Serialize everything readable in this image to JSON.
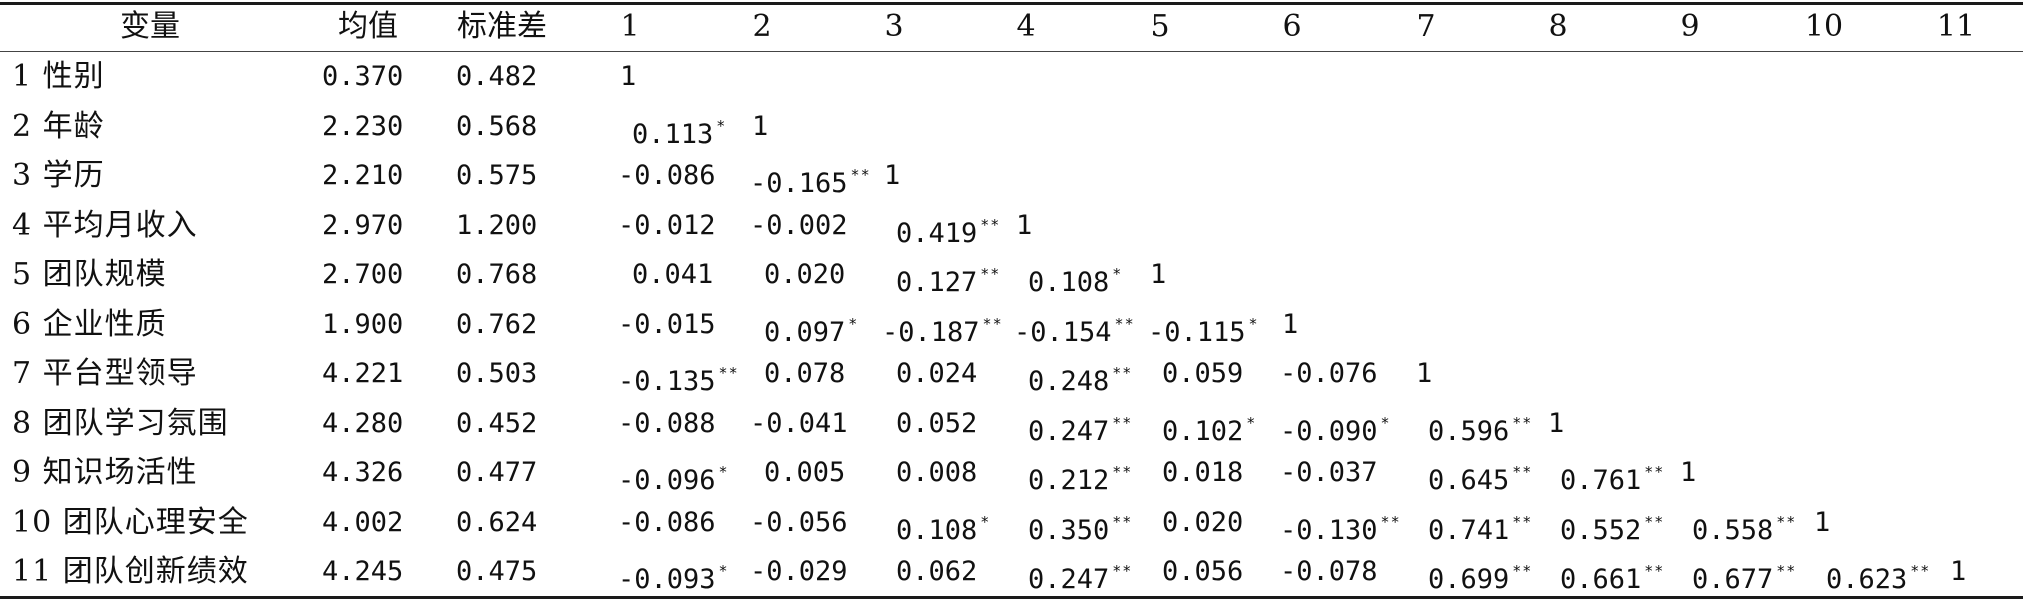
{
  "table": {
    "headers": [
      "变量",
      "均值",
      "标准差",
      "1",
      "2",
      "3",
      "4",
      "5",
      "6",
      "7",
      "8",
      "9",
      "10",
      "11"
    ],
    "rows": [
      {
        "label": "1 性别",
        "mean": "0.370",
        "sd": "0.482",
        "cells": [
          {
            "v": "1",
            "s": ""
          }
        ]
      },
      {
        "label": "2 年龄",
        "mean": "2.230",
        "sd": "0.568",
        "cells": [
          {
            "v": "0.113",
            "s": "*"
          },
          {
            "v": "1",
            "s": ""
          }
        ]
      },
      {
        "label": "3 学历",
        "mean": "2.210",
        "sd": "0.575",
        "cells": [
          {
            "v": "-0.086",
            "s": ""
          },
          {
            "v": "-0.165",
            "s": "**"
          },
          {
            "v": "1",
            "s": ""
          }
        ]
      },
      {
        "label": "4 平均月收入",
        "mean": "2.970",
        "sd": "1.200",
        "cells": [
          {
            "v": "-0.012",
            "s": ""
          },
          {
            "v": "-0.002",
            "s": ""
          },
          {
            "v": "0.419",
            "s": "**"
          },
          {
            "v": "1",
            "s": ""
          }
        ]
      },
      {
        "label": "5 团队规模",
        "mean": "2.700",
        "sd": "0.768",
        "cells": [
          {
            "v": "0.041",
            "s": ""
          },
          {
            "v": "0.020",
            "s": ""
          },
          {
            "v": "0.127",
            "s": "**"
          },
          {
            "v": "0.108",
            "s": "*"
          },
          {
            "v": "1",
            "s": ""
          }
        ]
      },
      {
        "label": "6 企业性质",
        "mean": "1.900",
        "sd": "0.762",
        "cells": [
          {
            "v": "-0.015",
            "s": ""
          },
          {
            "v": "0.097",
            "s": "*"
          },
          {
            "v": "-0.187",
            "s": "**"
          },
          {
            "v": "-0.154",
            "s": "**"
          },
          {
            "v": "-0.115",
            "s": "*"
          },
          {
            "v": "1",
            "s": ""
          }
        ]
      },
      {
        "label": "7 平台型领导",
        "mean": "4.221",
        "sd": "0.503",
        "cells": [
          {
            "v": "-0.135",
            "s": "**"
          },
          {
            "v": "0.078",
            "s": ""
          },
          {
            "v": "0.024",
            "s": ""
          },
          {
            "v": "0.248",
            "s": "**"
          },
          {
            "v": "0.059",
            "s": ""
          },
          {
            "v": "-0.076",
            "s": ""
          },
          {
            "v": "1",
            "s": ""
          }
        ]
      },
      {
        "label": "8 团队学习氛围",
        "mean": "4.280",
        "sd": "0.452",
        "cells": [
          {
            "v": "-0.088",
            "s": ""
          },
          {
            "v": "-0.041",
            "s": ""
          },
          {
            "v": "0.052",
            "s": ""
          },
          {
            "v": "0.247",
            "s": "**"
          },
          {
            "v": "0.102",
            "s": "*"
          },
          {
            "v": "-0.090",
            "s": "*"
          },
          {
            "v": "0.596",
            "s": "**"
          },
          {
            "v": "1",
            "s": ""
          }
        ]
      },
      {
        "label": "9 知识场活性",
        "mean": "4.326",
        "sd": "0.477",
        "cells": [
          {
            "v": "-0.096",
            "s": "*"
          },
          {
            "v": "0.005",
            "s": ""
          },
          {
            "v": "0.008",
            "s": ""
          },
          {
            "v": "0.212",
            "s": "**"
          },
          {
            "v": "0.018",
            "s": ""
          },
          {
            "v": "-0.037",
            "s": ""
          },
          {
            "v": "0.645",
            "s": "**"
          },
          {
            "v": "0.761",
            "s": "**"
          },
          {
            "v": "1",
            "s": ""
          }
        ]
      },
      {
        "label": "10 团队心理安全",
        "mean": "4.002",
        "sd": "0.624",
        "cells": [
          {
            "v": "-0.086",
            "s": ""
          },
          {
            "v": "-0.056",
            "s": ""
          },
          {
            "v": "0.108",
            "s": "*"
          },
          {
            "v": "0.350",
            "s": "**"
          },
          {
            "v": "0.020",
            "s": ""
          },
          {
            "v": "-0.130",
            "s": "**"
          },
          {
            "v": "0.741",
            "s": "**"
          },
          {
            "v": "0.552",
            "s": "**"
          },
          {
            "v": "0.558",
            "s": "**"
          },
          {
            "v": "1",
            "s": ""
          }
        ]
      },
      {
        "label": "11 团队创新绩效",
        "mean": "4.245",
        "sd": "0.475",
        "cells": [
          {
            "v": "-0.093",
            "s": "*"
          },
          {
            "v": "-0.029",
            "s": ""
          },
          {
            "v": "0.062",
            "s": ""
          },
          {
            "v": "0.247",
            "s": "**"
          },
          {
            "v": "0.056",
            "s": ""
          },
          {
            "v": "-0.078",
            "s": ""
          },
          {
            "v": "0.699",
            "s": "**"
          },
          {
            "v": "0.661",
            "s": "**"
          },
          {
            "v": "0.677",
            "s": "**"
          },
          {
            "v": "0.623",
            "s": "**"
          },
          {
            "v": "1",
            "s": ""
          }
        ]
      }
    ]
  }
}
